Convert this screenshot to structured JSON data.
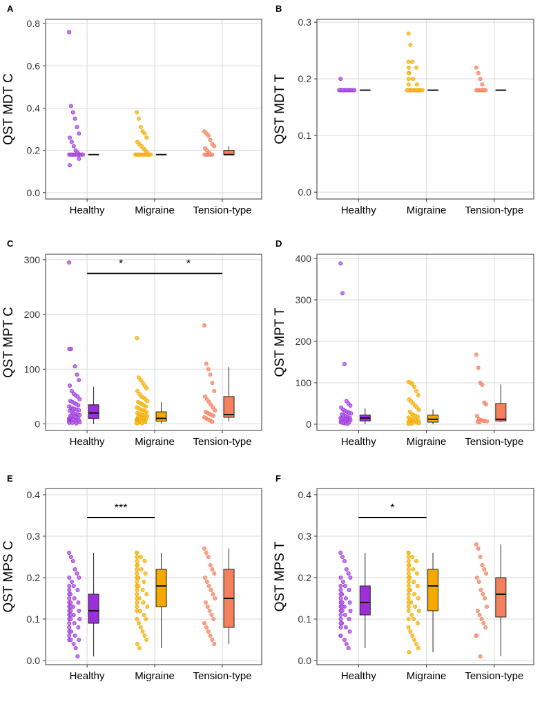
{
  "colors": {
    "Healthy": "#9b30d9",
    "Migraine": "#f5a800",
    "Tension-type": "#f4805e",
    "Healthy_point": "#b569e6",
    "Migraine_point": "#f6bf2b",
    "Tension-type_point": "#f5987c"
  },
  "chart_data": [
    {
      "id": "A",
      "type": "box-jitter",
      "ylabel": "QST MDT C",
      "ylim": [
        -0.03,
        0.82
      ],
      "yticks": [
        0.0,
        0.2,
        0.4,
        0.6,
        0.8
      ],
      "ytick_labels": [
        "0.0",
        "0.2",
        "0.4",
        "0.6",
        "0.8"
      ],
      "categories": [
        "Healthy",
        "Migraine",
        "Tension-type"
      ],
      "points": {
        "Healthy": [
          0.76,
          0.41,
          0.38,
          0.35,
          0.31,
          0.28,
          0.26,
          0.24,
          0.22,
          0.2,
          0.19,
          0.18,
          0.18,
          0.18,
          0.18,
          0.18,
          0.18,
          0.18,
          0.18,
          0.18,
          0.18,
          0.18,
          0.16,
          0.13
        ],
        "Migraine": [
          0.38,
          0.35,
          0.31,
          0.29,
          0.28,
          0.26,
          0.24,
          0.23,
          0.22,
          0.21,
          0.2,
          0.19,
          0.18,
          0.18,
          0.18,
          0.18,
          0.18,
          0.18,
          0.18,
          0.18,
          0.18,
          0.18,
          0.18,
          0.18,
          0.18,
          0.18
        ],
        "Tension-type": [
          0.29,
          0.28,
          0.27,
          0.25,
          0.23,
          0.22,
          0.21,
          0.2,
          0.19,
          0.18,
          0.18,
          0.18,
          0.18,
          0.18,
          0.18,
          0.18
        ]
      },
      "boxes": {
        "Healthy": {
          "min": 0.18,
          "q1": 0.18,
          "median": 0.18,
          "q3": 0.18,
          "max": 0.18
        },
        "Migraine": {
          "min": 0.18,
          "q1": 0.18,
          "median": 0.18,
          "q3": 0.18,
          "max": 0.18
        },
        "Tension-type": {
          "min": 0.18,
          "q1": 0.18,
          "median": 0.18,
          "q3": 0.2,
          "max": 0.22
        }
      },
      "significance": []
    },
    {
      "id": "B",
      "type": "box-jitter",
      "ylabel": "QST MDT T",
      "ylim": [
        -0.012,
        0.305
      ],
      "yticks": [
        0.0,
        0.1,
        0.2,
        0.3
      ],
      "ytick_labels": [
        "0.0",
        "0.1",
        "0.2",
        "0.3"
      ],
      "categories": [
        "Healthy",
        "Migraine",
        "Tension-type"
      ],
      "points": {
        "Healthy": [
          0.2,
          0.18,
          0.18,
          0.18,
          0.18,
          0.18,
          0.18,
          0.18,
          0.18,
          0.18,
          0.18,
          0.18,
          0.18,
          0.18,
          0.18
        ],
        "Migraine": [
          0.28,
          0.26,
          0.23,
          0.23,
          0.22,
          0.22,
          0.21,
          0.21,
          0.2,
          0.2,
          0.19,
          0.19,
          0.18,
          0.18,
          0.18,
          0.18,
          0.18,
          0.18,
          0.18,
          0.18,
          0.18,
          0.18,
          0.18,
          0.18,
          0.18
        ],
        "Tension-type": [
          0.22,
          0.21,
          0.2,
          0.19,
          0.18,
          0.18,
          0.18,
          0.18,
          0.18,
          0.18,
          0.18,
          0.18
        ]
      },
      "boxes": {
        "Healthy": {
          "min": 0.18,
          "q1": 0.18,
          "median": 0.18,
          "q3": 0.18,
          "max": 0.18
        },
        "Migraine": {
          "min": 0.18,
          "q1": 0.18,
          "median": 0.18,
          "q3": 0.18,
          "max": 0.18
        },
        "Tension-type": {
          "min": 0.18,
          "q1": 0.18,
          "median": 0.18,
          "q3": 0.18,
          "max": 0.18
        }
      },
      "significance": []
    },
    {
      "id": "C",
      "type": "box-jitter",
      "ylabel": "QST MPT C",
      "ylim": [
        -12,
        310
      ],
      "yticks": [
        0,
        100,
        200,
        300
      ],
      "ytick_labels": [
        "0",
        "100",
        "200",
        "300"
      ],
      "categories": [
        "Healthy",
        "Migraine",
        "Tension-type"
      ],
      "points": {
        "Healthy": [
          295,
          137,
          137,
          105,
          90,
          80,
          70,
          60,
          55,
          52,
          50,
          45,
          42,
          40,
          38,
          36,
          34,
          32,
          30,
          28,
          27,
          26,
          25,
          24,
          22,
          20,
          18,
          17,
          16,
          15,
          14,
          13,
          12,
          11,
          10,
          9,
          8,
          8,
          7,
          6,
          6,
          5,
          5,
          4,
          4,
          3,
          3,
          2,
          2,
          1
        ],
        "Migraine": [
          157,
          85,
          80,
          75,
          70,
          65,
          60,
          55,
          50,
          48,
          45,
          42,
          40,
          38,
          36,
          34,
          32,
          30,
          28,
          26,
          25,
          24,
          22,
          20,
          18,
          17,
          16,
          15,
          14,
          13,
          12,
          11,
          10,
          9,
          8,
          8,
          7,
          7,
          6,
          6,
          5,
          5,
          4,
          4,
          3,
          3,
          2,
          2,
          1,
          1
        ],
        "Tension-type": [
          180,
          110,
          100,
          90,
          75,
          60,
          50,
          45,
          40,
          35,
          30,
          25,
          22,
          20,
          18,
          16,
          15,
          12,
          10,
          8,
          6,
          4
        ]
      },
      "boxes": {
        "Healthy": {
          "min": 0,
          "q1": 10,
          "median": 20,
          "q3": 35,
          "max": 68
        },
        "Migraine": {
          "min": 0,
          "q1": 5,
          "median": 10,
          "q3": 22,
          "max": 40
        },
        "Tension-type": {
          "min": 5,
          "q1": 12,
          "median": 17,
          "q3": 50,
          "max": 104
        }
      },
      "significance": [
        {
          "from": "Healthy",
          "to": "Migraine",
          "y": 275,
          "label": "*"
        },
        {
          "from": "Migraine",
          "to": "Tension-type",
          "y": 275,
          "label": "*"
        }
      ]
    },
    {
      "id": "D",
      "type": "box-jitter",
      "ylabel": "QST MPT T",
      "ylim": [
        -15,
        410
      ],
      "yticks": [
        0,
        100,
        200,
        300,
        400
      ],
      "ytick_labels": [
        "0",
        "100",
        "200",
        "300",
        "400"
      ],
      "categories": [
        "Healthy",
        "Migraine",
        "Tension-type"
      ],
      "points": {
        "Healthy": [
          388,
          316,
          145,
          56,
          50,
          45,
          40,
          35,
          32,
          30,
          28,
          26,
          24,
          22,
          20,
          18,
          16,
          15,
          14,
          13,
          12,
          11,
          10,
          9,
          8,
          7,
          6,
          5,
          5,
          4,
          3,
          2,
          1
        ],
        "Migraine": [
          102,
          100,
          98,
          90,
          80,
          70,
          60,
          55,
          50,
          45,
          40,
          35,
          30,
          25,
          22,
          20,
          18,
          16,
          14,
          12,
          10,
          9,
          8,
          7,
          6,
          5,
          5,
          4,
          3,
          2,
          1,
          1
        ],
        "Tension-type": [
          168,
          136,
          100,
          95,
          52,
          48,
          20,
          12,
          10,
          9,
          8,
          7,
          6,
          5
        ]
      },
      "boxes": {
        "Healthy": {
          "min": 0,
          "q1": 8,
          "median": 15,
          "q3": 22,
          "max": 38
        },
        "Migraine": {
          "min": 0,
          "q1": 5,
          "median": 12,
          "q3": 22,
          "max": 36
        },
        "Tension-type": {
          "min": 5,
          "q1": 8,
          "median": 12,
          "q3": 50,
          "max": 96
        }
      },
      "significance": []
    },
    {
      "id": "E",
      "type": "box-jitter",
      "ylabel": "QST MPS C",
      "ylim": [
        -0.01,
        0.415
      ],
      "yticks": [
        0.0,
        0.1,
        0.2,
        0.3,
        0.4
      ],
      "ytick_labels": [
        "0.0",
        "0.1",
        "0.2",
        "0.3",
        "0.4"
      ],
      "categories": [
        "Healthy",
        "Migraine",
        "Tension-type"
      ],
      "points": {
        "Healthy": [
          0.26,
          0.25,
          0.24,
          0.22,
          0.21,
          0.2,
          0.2,
          0.19,
          0.18,
          0.18,
          0.17,
          0.17,
          0.16,
          0.16,
          0.15,
          0.15,
          0.14,
          0.14,
          0.14,
          0.13,
          0.13,
          0.13,
          0.12,
          0.12,
          0.12,
          0.11,
          0.11,
          0.11,
          0.1,
          0.1,
          0.1,
          0.09,
          0.09,
          0.08,
          0.08,
          0.07,
          0.07,
          0.06,
          0.06,
          0.05,
          0.05,
          0.05,
          0.04,
          0.03,
          0.01
        ],
        "Migraine": [
          0.26,
          0.26,
          0.25,
          0.25,
          0.24,
          0.24,
          0.23,
          0.23,
          0.22,
          0.22,
          0.21,
          0.21,
          0.2,
          0.2,
          0.2,
          0.19,
          0.19,
          0.18,
          0.18,
          0.18,
          0.17,
          0.17,
          0.16,
          0.16,
          0.15,
          0.15,
          0.14,
          0.14,
          0.13,
          0.13,
          0.12,
          0.12,
          0.11,
          0.1,
          0.1,
          0.09,
          0.08,
          0.07,
          0.06,
          0.05,
          0.04,
          0.03
        ],
        "Tension-type": [
          0.27,
          0.26,
          0.25,
          0.23,
          0.22,
          0.21,
          0.2,
          0.19,
          0.18,
          0.17,
          0.16,
          0.15,
          0.14,
          0.13,
          0.12,
          0.11,
          0.1,
          0.09,
          0.08,
          0.07,
          0.06,
          0.05,
          0.04
        ]
      },
      "boxes": {
        "Healthy": {
          "min": 0.01,
          "q1": 0.09,
          "median": 0.12,
          "q3": 0.16,
          "max": 0.26
        },
        "Migraine": {
          "min": 0.03,
          "q1": 0.13,
          "median": 0.18,
          "q3": 0.22,
          "max": 0.26
        },
        "Tension-type": {
          "min": 0.04,
          "q1": 0.08,
          "median": 0.15,
          "q3": 0.22,
          "max": 0.27
        }
      },
      "significance": [
        {
          "from": "Healthy",
          "to": "Migraine",
          "y": 0.345,
          "label": "***"
        }
      ]
    },
    {
      "id": "F",
      "type": "box-jitter",
      "ylabel": "QST MPS T",
      "ylim": [
        -0.01,
        0.415
      ],
      "yticks": [
        0.0,
        0.1,
        0.2,
        0.3,
        0.4
      ],
      "ytick_labels": [
        "0.0",
        "0.1",
        "0.2",
        "0.3",
        "0.4"
      ],
      "categories": [
        "Healthy",
        "Migraine",
        "Tension-type"
      ],
      "points": {
        "Healthy": [
          0.26,
          0.25,
          0.24,
          0.22,
          0.21,
          0.2,
          0.2,
          0.19,
          0.18,
          0.18,
          0.17,
          0.17,
          0.16,
          0.16,
          0.15,
          0.15,
          0.14,
          0.14,
          0.14,
          0.13,
          0.13,
          0.13,
          0.12,
          0.12,
          0.12,
          0.11,
          0.11,
          0.1,
          0.1,
          0.09,
          0.09,
          0.08,
          0.08,
          0.07,
          0.06,
          0.06,
          0.05,
          0.04,
          0.03
        ],
        "Migraine": [
          0.26,
          0.26,
          0.25,
          0.25,
          0.24,
          0.24,
          0.23,
          0.23,
          0.22,
          0.22,
          0.21,
          0.21,
          0.2,
          0.2,
          0.19,
          0.19,
          0.18,
          0.18,
          0.17,
          0.17,
          0.16,
          0.16,
          0.15,
          0.15,
          0.14,
          0.14,
          0.13,
          0.13,
          0.12,
          0.12,
          0.11,
          0.1,
          0.1,
          0.09,
          0.08,
          0.07,
          0.06,
          0.05,
          0.04,
          0.03,
          0.02
        ],
        "Tension-type": [
          0.28,
          0.27,
          0.25,
          0.23,
          0.22,
          0.21,
          0.2,
          0.19,
          0.17,
          0.16,
          0.15,
          0.13,
          0.12,
          0.11,
          0.1,
          0.09,
          0.08,
          0.06,
          0.06,
          0.01
        ]
      },
      "boxes": {
        "Healthy": {
          "min": 0.03,
          "q1": 0.11,
          "median": 0.14,
          "q3": 0.18,
          "max": 0.26
        },
        "Migraine": {
          "min": 0.02,
          "q1": 0.12,
          "median": 0.18,
          "q3": 0.22,
          "max": 0.26
        },
        "Tension-type": {
          "min": 0.01,
          "q1": 0.105,
          "median": 0.16,
          "q3": 0.2,
          "max": 0.28
        }
      },
      "significance": [
        {
          "from": "Healthy",
          "to": "Migraine",
          "y": 0.345,
          "label": "*"
        }
      ]
    }
  ]
}
